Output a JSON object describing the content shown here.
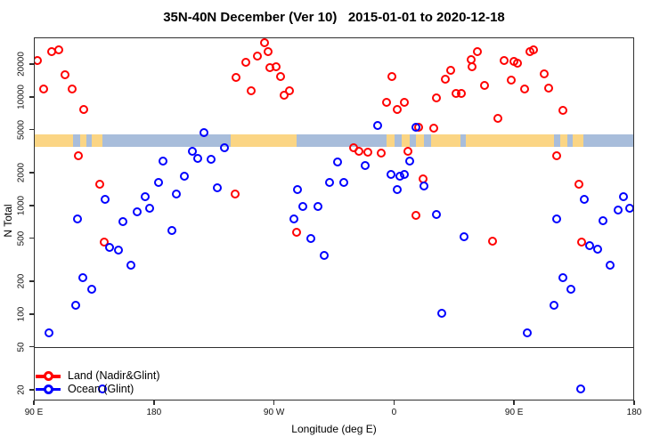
{
  "title": "35N-40N December (Ver 10)   2015-01-01 to 2020-12-18",
  "chart_data": {
    "type": "scatter",
    "title": "35N-40N December (Ver 10)   2015-01-01 to 2020-12-18",
    "xlabel": "Longitude (deg E)",
    "ylabel": "N Total",
    "x_axis": {
      "note": "longitude unwrapped eastward starting at 90E",
      "min": 90,
      "max": 540,
      "ticks": [
        {
          "v": 90,
          "label": "90 E"
        },
        {
          "v": 180,
          "label": "180"
        },
        {
          "v": 270,
          "label": "90 W"
        },
        {
          "v": 360,
          "label": "0"
        },
        {
          "v": 450,
          "label": "90 E"
        },
        {
          "v": 540,
          "label": "180"
        }
      ]
    },
    "y_axis": {
      "scale": "log",
      "min": 16,
      "max": 35300,
      "ticks": [
        20,
        50,
        100,
        200,
        500,
        1000,
        2000,
        5000,
        10000,
        20000
      ]
    },
    "reference_line": {
      "n_value": 50,
      "color": "#2f2f2f"
    },
    "land_ocean_band": {
      "n_top": 4600,
      "n_bottom": 3500,
      "land_color": "#FBD584",
      "ocean_color": "#A8BDDB",
      "segments": [
        {
          "from": 90,
          "to": 119,
          "type": "land"
        },
        {
          "from": 119,
          "to": 124,
          "type": "ocean"
        },
        {
          "from": 124,
          "to": 129,
          "type": "land"
        },
        {
          "from": 129,
          "to": 133,
          "type": "ocean"
        },
        {
          "from": 133,
          "to": 141,
          "type": "land"
        },
        {
          "from": 141,
          "to": 237,
          "type": "ocean"
        },
        {
          "from": 237,
          "to": 286,
          "type": "land"
        },
        {
          "from": 286,
          "to": 354,
          "type": "ocean"
        },
        {
          "from": 354,
          "to": 360,
          "type": "land"
        },
        {
          "from": 360,
          "to": 365,
          "type": "ocean"
        },
        {
          "from": 365,
          "to": 371,
          "type": "land"
        },
        {
          "from": 371,
          "to": 376,
          "type": "ocean"
        },
        {
          "from": 376,
          "to": 382,
          "type": "land"
        },
        {
          "from": 382,
          "to": 387,
          "type": "ocean"
        },
        {
          "from": 387,
          "to": 409,
          "type": "land"
        },
        {
          "from": 409,
          "to": 413,
          "type": "ocean"
        },
        {
          "from": 413,
          "to": 479,
          "type": "land"
        },
        {
          "from": 479,
          "to": 484,
          "type": "ocean"
        },
        {
          "from": 484,
          "to": 489,
          "type": "land"
        },
        {
          "from": 489,
          "to": 493,
          "type": "ocean"
        },
        {
          "from": 493,
          "to": 501,
          "type": "land"
        },
        {
          "from": 501,
          "to": 540,
          "type": "ocean"
        }
      ]
    },
    "series": [
      {
        "name": "Land (Nadir&Glint)",
        "color": "#FF0000",
        "points": [
          [
            92,
            22000
          ],
          [
            103,
            26500
          ],
          [
            108,
            27700
          ],
          [
            97,
            12100
          ],
          [
            113,
            16300
          ],
          [
            118,
            12100
          ],
          [
            127,
            7800
          ],
          [
            123,
            2920
          ],
          [
            241,
            15350
          ],
          [
            262,
            32000
          ],
          [
            257,
            24200
          ],
          [
            248,
            21300
          ],
          [
            265,
            26500
          ],
          [
            266,
            18800
          ],
          [
            271,
            19400
          ],
          [
            274,
            15600
          ],
          [
            252,
            11700
          ],
          [
            277,
            10600
          ],
          [
            281,
            11700
          ],
          [
            358,
            15600
          ],
          [
            354,
            9100
          ],
          [
            367,
            9100
          ],
          [
            362,
            7800
          ],
          [
            391,
            10000
          ],
          [
            389,
            5220
          ],
          [
            378,
            5390
          ],
          [
            329,
            3460
          ],
          [
            333,
            3210
          ],
          [
            340,
            3180
          ],
          [
            350,
            3120
          ],
          [
            370,
            3230
          ],
          [
            402,
            17900
          ],
          [
            398,
            14800
          ],
          [
            417,
            22400
          ],
          [
            422,
            26500
          ],
          [
            418,
            19400
          ],
          [
            406,
            11000
          ],
          [
            410,
            10900
          ],
          [
            427,
            13000
          ],
          [
            442,
            22200
          ],
          [
            449,
            21800
          ],
          [
            452,
            20900
          ],
          [
            461,
            26500
          ],
          [
            464,
            27700
          ],
          [
            447,
            14600
          ],
          [
            457,
            12100
          ],
          [
            472,
            16500
          ],
          [
            475,
            12250
          ],
          [
            486,
            7660
          ],
          [
            437,
            6510
          ],
          [
            481,
            2900
          ],
          [
            139,
            1610
          ],
          [
            142,
            466
          ],
          [
            240,
            1310
          ],
          [
            381,
            1780
          ],
          [
            286,
            578
          ],
          [
            376,
            832
          ],
          [
            498,
            1610
          ],
          [
            433,
            478
          ],
          [
            500,
            468
          ]
        ]
      },
      {
        "name": "Ocean (Glint)",
        "color": "#0000FF",
        "points": [
          [
            217,
            4740
          ],
          [
            208,
            3230
          ],
          [
            212,
            2740
          ],
          [
            222,
            2690
          ],
          [
            232,
            3460
          ],
          [
            186,
            2590
          ],
          [
            347,
            5560
          ],
          [
            376,
            5330
          ],
          [
            183,
            1670
          ],
          [
            202,
            1910
          ],
          [
            143,
            1160
          ],
          [
            173,
            1230
          ],
          [
            196,
            1290
          ],
          [
            176,
            957
          ],
          [
            167,
            899
          ],
          [
            122,
            772
          ],
          [
            156,
            724
          ],
          [
            193,
            600
          ],
          [
            227,
            1490
          ],
          [
            146,
            422
          ],
          [
            153,
            396
          ],
          [
            162,
            288
          ],
          [
            126,
            219
          ],
          [
            317,
            2560
          ],
          [
            338,
            2360
          ],
          [
            371,
            2590
          ],
          [
            357,
            1950
          ],
          [
            364,
            1910
          ],
          [
            367,
            1980
          ],
          [
            362,
            1420
          ],
          [
            382,
            1540
          ],
          [
            287,
            1420
          ],
          [
            311,
            1650
          ],
          [
            322,
            1670
          ],
          [
            291,
            993
          ],
          [
            302,
            993
          ],
          [
            284,
            772
          ],
          [
            297,
            509
          ],
          [
            307,
            356
          ],
          [
            391,
            843
          ],
          [
            502,
            1160
          ],
          [
            531,
            1230
          ],
          [
            527,
            927
          ],
          [
            536,
            957
          ],
          [
            481,
            772
          ],
          [
            516,
            733
          ],
          [
            412,
            527
          ],
          [
            506,
            436
          ],
          [
            512,
            400
          ],
          [
            521,
            288
          ],
          [
            486,
            222
          ],
          [
            133,
            173
          ],
          [
            121,
            122
          ],
          [
            101,
            69
          ],
          [
            141,
            21
          ],
          [
            492,
            173
          ],
          [
            479,
            122
          ],
          [
            395,
            104
          ],
          [
            459,
            69
          ],
          [
            499,
            21
          ]
        ]
      }
    ],
    "legend": {
      "position": "bottom-left"
    }
  }
}
